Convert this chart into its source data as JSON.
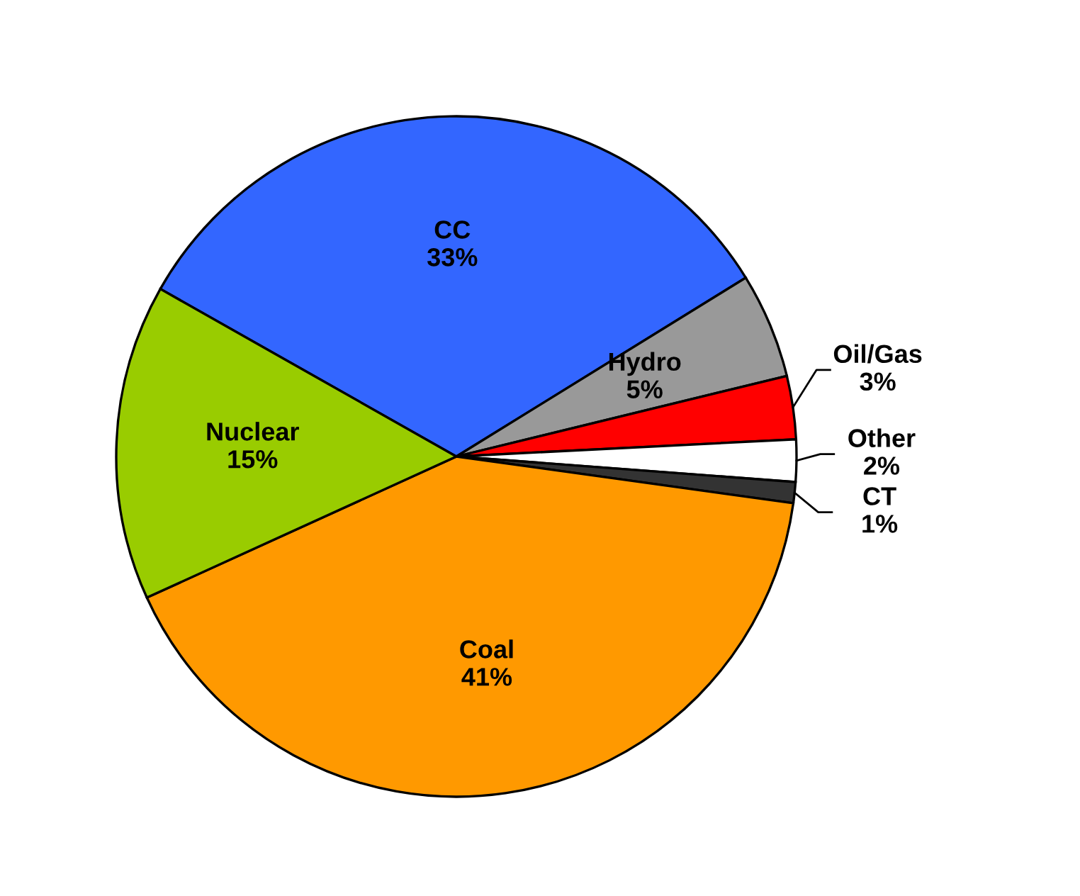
{
  "chart_data": {
    "type": "pie",
    "categories": [
      "CC",
      "Hydro",
      "Oil/Gas",
      "Other",
      "CT",
      "Coal",
      "Nuclear"
    ],
    "values": [
      33,
      5,
      3,
      2,
      1,
      41,
      15
    ],
    "colors": [
      "#3366ff",
      "#999999",
      "#ff0000",
      "#ffffff",
      "#333333",
      "#ff9900",
      "#99cc00"
    ],
    "value_labels": [
      "33%",
      "5%",
      "3%",
      "2%",
      "1%",
      "41%",
      "15%"
    ]
  }
}
